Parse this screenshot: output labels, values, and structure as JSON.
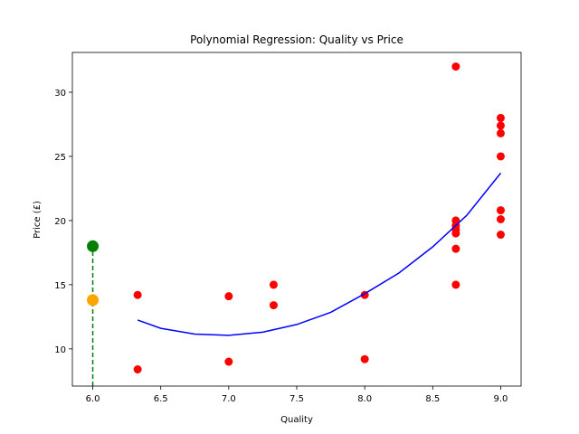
{
  "chart_data": {
    "type": "scatter",
    "title": "Polynomial Regression: Quality vs Price",
    "xlabel": "Quality",
    "ylabel": "Price (£)",
    "xlim": [
      5.85,
      9.15
    ],
    "ylim": [
      7.1,
      33.1
    ],
    "xticks": [
      6.0,
      6.5,
      7.0,
      7.5,
      8.0,
      8.5,
      9.0
    ],
    "xtick_labels": [
      "6.0",
      "6.5",
      "7.0",
      "7.5",
      "8.0",
      "8.5",
      "9.0"
    ],
    "yticks": [
      10,
      15,
      20,
      25,
      30
    ],
    "ytick_labels": [
      "10",
      "15",
      "20",
      "25",
      "30"
    ],
    "grid": false,
    "series": [
      {
        "type": "scatter",
        "color": "#ff0000",
        "points": [
          [
            6.33,
            14.2
          ],
          [
            6.33,
            8.4
          ],
          [
            7.0,
            14.1
          ],
          [
            7.0,
            9.0
          ],
          [
            7.33,
            15.0
          ],
          [
            7.33,
            13.4
          ],
          [
            8.0,
            14.2
          ],
          [
            8.0,
            9.2
          ],
          [
            8.67,
            32.0
          ],
          [
            8.67,
            20.0
          ],
          [
            8.67,
            19.6
          ],
          [
            8.67,
            19.3
          ],
          [
            8.67,
            19.0
          ],
          [
            8.67,
            17.8
          ],
          [
            8.67,
            15.0
          ],
          [
            9.0,
            28.0
          ],
          [
            9.0,
            27.4
          ],
          [
            9.0,
            26.8
          ],
          [
            9.0,
            25.0
          ],
          [
            9.0,
            20.8
          ],
          [
            9.0,
            20.1
          ],
          [
            9.0,
            18.9
          ]
        ]
      },
      {
        "type": "line",
        "color": "#0000ff",
        "points": [
          [
            6.33,
            12.25
          ],
          [
            6.5,
            11.6
          ],
          [
            6.75,
            11.15
          ],
          [
            7.0,
            11.05
          ],
          [
            7.25,
            11.3
          ],
          [
            7.5,
            11.9
          ],
          [
            7.75,
            12.85
          ],
          [
            8.0,
            14.3
          ],
          [
            8.25,
            15.9
          ],
          [
            8.5,
            17.95
          ],
          [
            8.75,
            20.4
          ],
          [
            9.0,
            23.7
          ]
        ]
      },
      {
        "type": "point",
        "color": "#008000",
        "points": [
          [
            6.0,
            18.0
          ]
        ]
      },
      {
        "type": "point",
        "color": "#ffa500",
        "points": [
          [
            6.0,
            13.8
          ]
        ]
      },
      {
        "type": "vline",
        "color": "#008000",
        "x": 6.0,
        "y_to": 18.0
      }
    ]
  }
}
